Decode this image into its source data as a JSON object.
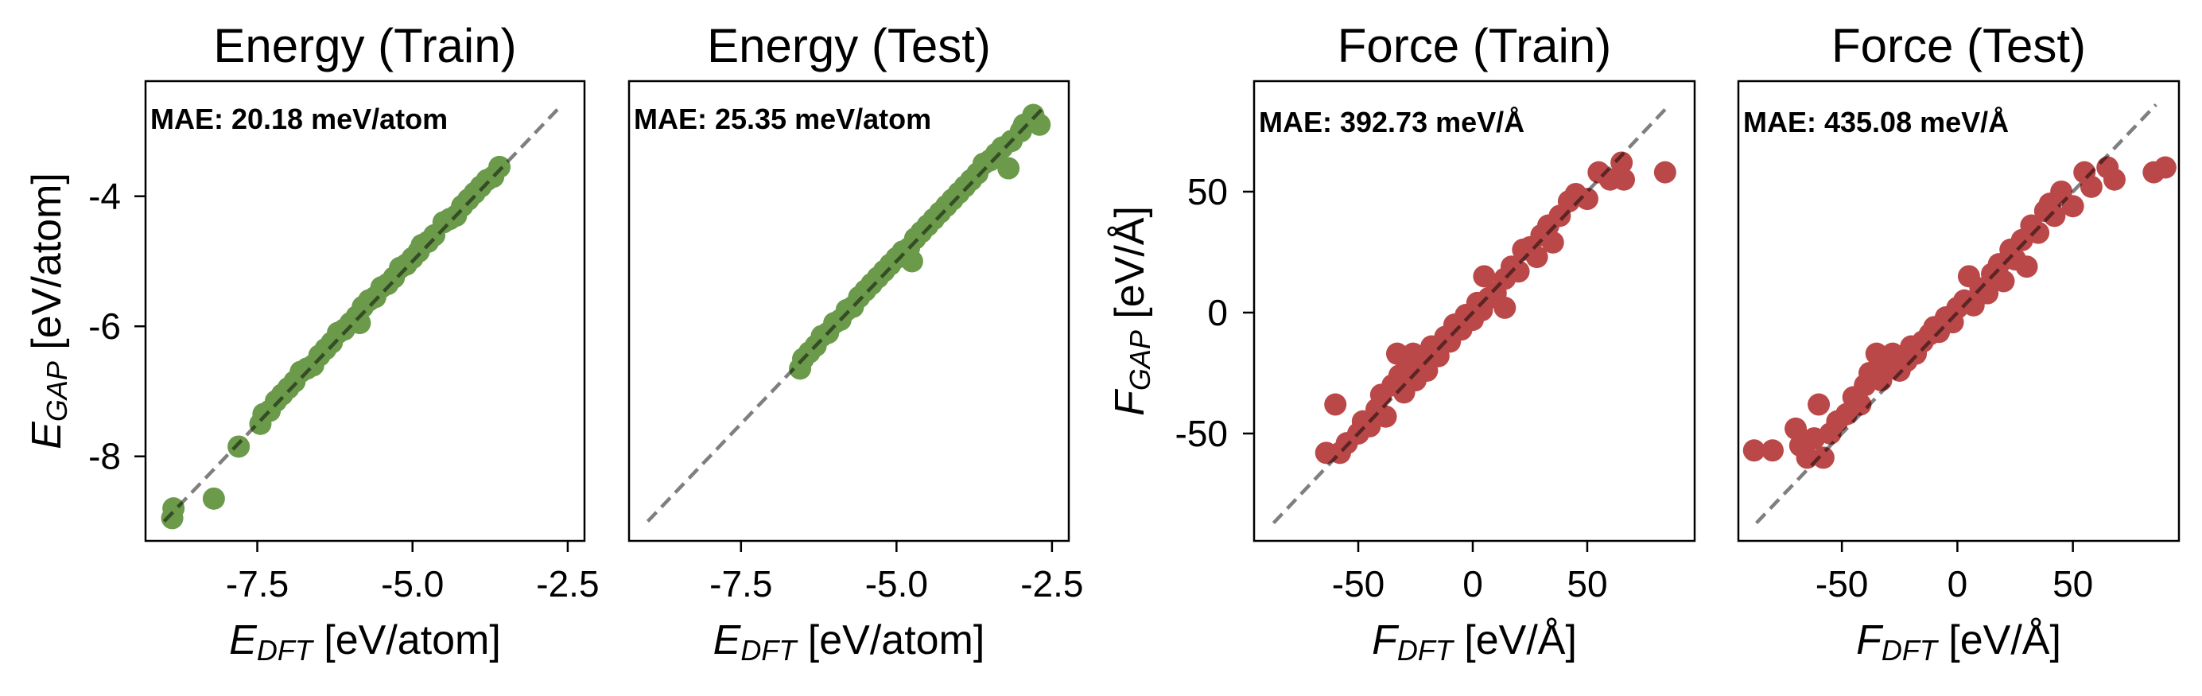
{
  "chart_data": [
    {
      "type": "scatter",
      "title": "Energy (Train)",
      "annotation": "MAE: 20.18 meV/atom",
      "xlabel": {
        "symbol": "E",
        "sub": "DFT",
        "unit": " [eV/atom]"
      },
      "ylabel": {
        "symbol": "E",
        "sub": "GAP",
        "unit": " [eV/atom]"
      },
      "xlim": [
        -9.3,
        -2.23
      ],
      "ylim": [
        -9.3,
        -2.23
      ],
      "xticks": [
        "-7.5",
        "-5.0",
        "-2.5"
      ],
      "xtick_values": [
        -7.5,
        -5.0,
        -2.5
      ],
      "yticks": [
        "-4",
        "-6",
        "-8"
      ],
      "ytick_values": [
        -4,
        -6,
        -8
      ],
      "show_yticklabels": true,
      "color": "#6a9a4a",
      "parity_line": [
        -9.0,
        -2.6
      ],
      "points": [
        [
          -8.87,
          -8.95
        ],
        [
          -8.85,
          -8.8
        ],
        [
          -8.2,
          -8.65
        ],
        [
          -7.8,
          -7.85
        ],
        [
          -7.45,
          -7.5
        ],
        [
          -7.4,
          -7.35
        ],
        [
          -7.3,
          -7.3
        ],
        [
          -7.2,
          -7.15
        ],
        [
          -7.1,
          -7.05
        ],
        [
          -7.0,
          -6.95
        ],
        [
          -6.9,
          -6.85
        ],
        [
          -6.8,
          -6.7
        ],
        [
          -6.7,
          -6.65
        ],
        [
          -6.6,
          -6.6
        ],
        [
          -6.5,
          -6.45
        ],
        [
          -6.4,
          -6.35
        ],
        [
          -6.3,
          -6.25
        ],
        [
          -6.2,
          -6.1
        ],
        [
          -6.1,
          -6.05
        ],
        [
          -6.0,
          -5.95
        ],
        [
          -5.9,
          -5.85
        ],
        [
          -5.85,
          -5.95
        ],
        [
          -5.8,
          -5.7
        ],
        [
          -5.7,
          -5.6
        ],
        [
          -5.6,
          -5.55
        ],
        [
          -5.5,
          -5.4
        ],
        [
          -5.4,
          -5.35
        ],
        [
          -5.3,
          -5.25
        ],
        [
          -5.2,
          -5.1
        ],
        [
          -5.1,
          -5.05
        ],
        [
          -5.0,
          -4.95
        ],
        [
          -4.9,
          -4.85
        ],
        [
          -4.85,
          -4.75
        ],
        [
          -4.75,
          -4.7
        ],
        [
          -4.65,
          -4.6
        ],
        [
          -4.5,
          -4.4
        ],
        [
          -4.4,
          -4.35
        ],
        [
          -4.3,
          -4.3
        ],
        [
          -4.2,
          -4.15
        ],
        [
          -4.1,
          -4.05
        ],
        [
          -4.0,
          -3.95
        ],
        [
          -3.9,
          -3.85
        ],
        [
          -3.8,
          -3.75
        ],
        [
          -3.7,
          -3.7
        ],
        [
          -3.6,
          -3.55
        ]
      ]
    },
    {
      "type": "scatter",
      "title": "Energy (Test)",
      "annotation": "MAE: 25.35 meV/atom",
      "xlabel": {
        "symbol": "E",
        "sub": "DFT",
        "unit": " [eV/atom]"
      },
      "xlim": [
        -9.3,
        -2.23
      ],
      "ylim": [
        -9.3,
        -2.23
      ],
      "xticks": [
        "-7.5",
        "-5.0",
        "-2.5"
      ],
      "xtick_values": [
        -7.5,
        -5.0,
        -2.5
      ],
      "yticks": [],
      "ytick_values": [],
      "show_yticklabels": false,
      "color": "#6a9a4a",
      "parity_line": [
        -9.0,
        -2.6
      ],
      "points": [
        [
          -6.55,
          -6.65
        ],
        [
          -6.5,
          -6.5
        ],
        [
          -6.4,
          -6.4
        ],
        [
          -6.3,
          -6.3
        ],
        [
          -6.2,
          -6.15
        ],
        [
          -6.1,
          -6.1
        ],
        [
          -6.0,
          -5.95
        ],
        [
          -5.9,
          -5.9
        ],
        [
          -5.8,
          -5.75
        ],
        [
          -5.7,
          -5.7
        ],
        [
          -5.6,
          -5.55
        ],
        [
          -5.5,
          -5.45
        ],
        [
          -5.4,
          -5.35
        ],
        [
          -5.3,
          -5.25
        ],
        [
          -5.2,
          -5.15
        ],
        [
          -5.1,
          -5.05
        ],
        [
          -5.0,
          -4.95
        ],
        [
          -4.9,
          -4.85
        ],
        [
          -4.8,
          -4.8
        ],
        [
          -4.75,
          -5.0
        ],
        [
          -4.7,
          -4.65
        ],
        [
          -4.6,
          -4.55
        ],
        [
          -4.5,
          -4.45
        ],
        [
          -4.4,
          -4.35
        ],
        [
          -4.3,
          -4.25
        ],
        [
          -4.2,
          -4.15
        ],
        [
          -4.1,
          -4.05
        ],
        [
          -4.0,
          -3.95
        ],
        [
          -3.9,
          -3.85
        ],
        [
          -3.8,
          -3.75
        ],
        [
          -3.7,
          -3.65
        ],
        [
          -3.6,
          -3.5
        ],
        [
          -3.5,
          -3.45
        ],
        [
          -3.4,
          -3.35
        ],
        [
          -3.3,
          -3.25
        ],
        [
          -3.2,
          -3.57
        ],
        [
          -3.15,
          -3.15
        ],
        [
          -3.0,
          -3.0
        ],
        [
          -2.95,
          -2.9
        ],
        [
          -2.85,
          -2.85
        ],
        [
          -2.8,
          -2.75
        ],
        [
          -2.7,
          -2.9
        ]
      ]
    },
    {
      "type": "scatter",
      "title": "Force (Train)",
      "annotation": "MAE: 392.73 meV/Å",
      "xlabel": {
        "symbol": "F",
        "sub": "DFT",
        "unit": " [eV/Å]"
      },
      "ylabel": {
        "symbol": "F",
        "sub": "GAP",
        "unit": " [eV/Å]"
      },
      "xlim": [
        -95.5,
        96.9
      ],
      "ylim": [
        -94.4,
        95.7
      ],
      "xticks": [
        "-50",
        "0",
        "50"
      ],
      "xtick_values": [
        -50,
        0,
        50
      ],
      "yticks": [
        "50",
        "0",
        "-50"
      ],
      "ytick_values": [
        50,
        0,
        -50
      ],
      "show_yticklabels": true,
      "color": "#bb4848",
      "parity_line": [
        -87,
        86
      ],
      "points": [
        [
          -64,
          -58
        ],
        [
          -60,
          -38
        ],
        [
          -58,
          -58
        ],
        [
          -55,
          -54
        ],
        [
          -50,
          -50
        ],
        [
          -48,
          -45
        ],
        [
          -45,
          -47
        ],
        [
          -42,
          -40
        ],
        [
          -40,
          -34
        ],
        [
          -38,
          -43
        ],
        [
          -35,
          -30
        ],
        [
          -33,
          -17
        ],
        [
          -32,
          -26
        ],
        [
          -30,
          -33
        ],
        [
          -28,
          -20
        ],
        [
          -26,
          -17
        ],
        [
          -25,
          -28
        ],
        [
          -22,
          -18
        ],
        [
          -20,
          -24
        ],
        [
          -18,
          -14
        ],
        [
          -15,
          -18
        ],
        [
          -12,
          -10
        ],
        [
          -10,
          -12
        ],
        [
          -8,
          -5
        ],
        [
          -5,
          -7
        ],
        [
          -3,
          -1
        ],
        [
          0,
          -3
        ],
        [
          2,
          4
        ],
        [
          4,
          1
        ],
        [
          5,
          15
        ],
        [
          7,
          6
        ],
        [
          10,
          8
        ],
        [
          14,
          2
        ],
        [
          14,
          14
        ],
        [
          17,
          19
        ],
        [
          20,
          17
        ],
        [
          22,
          26
        ],
        [
          25,
          27
        ],
        [
          28,
          23
        ],
        [
          30,
          32
        ],
        [
          33,
          36
        ],
        [
          35,
          29
        ],
        [
          38,
          40
        ],
        [
          42,
          46
        ],
        [
          45,
          49
        ],
        [
          50,
          47
        ],
        [
          55,
          58
        ],
        [
          60,
          55
        ],
        [
          65,
          62
        ],
        [
          66,
          55
        ],
        [
          84,
          58
        ]
      ]
    },
    {
      "type": "scatter",
      "title": "Force (Test)",
      "annotation": "MAE: 435.08 meV/Å",
      "xlabel": {
        "symbol": "F",
        "sub": "DFT",
        "unit": " [eV/Å]"
      },
      "xlim": [
        -94.8,
        95.9
      ],
      "ylim": [
        -94.4,
        95.7
      ],
      "xticks": [
        "-50",
        "0",
        "50"
      ],
      "xtick_values": [
        -50,
        0,
        50
      ],
      "yticks": [],
      "ytick_values": [],
      "show_yticklabels": false,
      "color": "#bb4848",
      "parity_line": [
        -87,
        86
      ],
      "points": [
        [
          -88,
          -57
        ],
        [
          -80,
          -57
        ],
        [
          -70,
          -48
        ],
        [
          -68,
          -55
        ],
        [
          -65,
          -60
        ],
        [
          -62,
          -52
        ],
        [
          -60,
          -38
        ],
        [
          -58,
          -60
        ],
        [
          -55,
          -50
        ],
        [
          -52,
          -45
        ],
        [
          -48,
          -42
        ],
        [
          -45,
          -35
        ],
        [
          -42,
          -38
        ],
        [
          -40,
          -30
        ],
        [
          -38,
          -25
        ],
        [
          -35,
          -17
        ],
        [
          -33,
          -28
        ],
        [
          -30,
          -22
        ],
        [
          -28,
          -17
        ],
        [
          -25,
          -24
        ],
        [
          -22,
          -20
        ],
        [
          -20,
          -14
        ],
        [
          -18,
          -17
        ],
        [
          -15,
          -12
        ],
        [
          -12,
          -9
        ],
        [
          -10,
          -6
        ],
        [
          -8,
          -8
        ],
        [
          -5,
          -2
        ],
        [
          -2,
          -4
        ],
        [
          0,
          2
        ],
        [
          3,
          5
        ],
        [
          5,
          15
        ],
        [
          7,
          3
        ],
        [
          10,
          10
        ],
        [
          13,
          8
        ],
        [
          15,
          16
        ],
        [
          18,
          20
        ],
        [
          20,
          13
        ],
        [
          23,
          26
        ],
        [
          25,
          22
        ],
        [
          28,
          30
        ],
        [
          30,
          19
        ],
        [
          32,
          36
        ],
        [
          35,
          33
        ],
        [
          38,
          42
        ],
        [
          40,
          45
        ],
        [
          42,
          40
        ],
        [
          45,
          50
        ],
        [
          50,
          44
        ],
        [
          55,
          58
        ],
        [
          58,
          52
        ],
        [
          65,
          60
        ],
        [
          68,
          55
        ],
        [
          85,
          58
        ],
        [
          90,
          60
        ]
      ]
    }
  ]
}
